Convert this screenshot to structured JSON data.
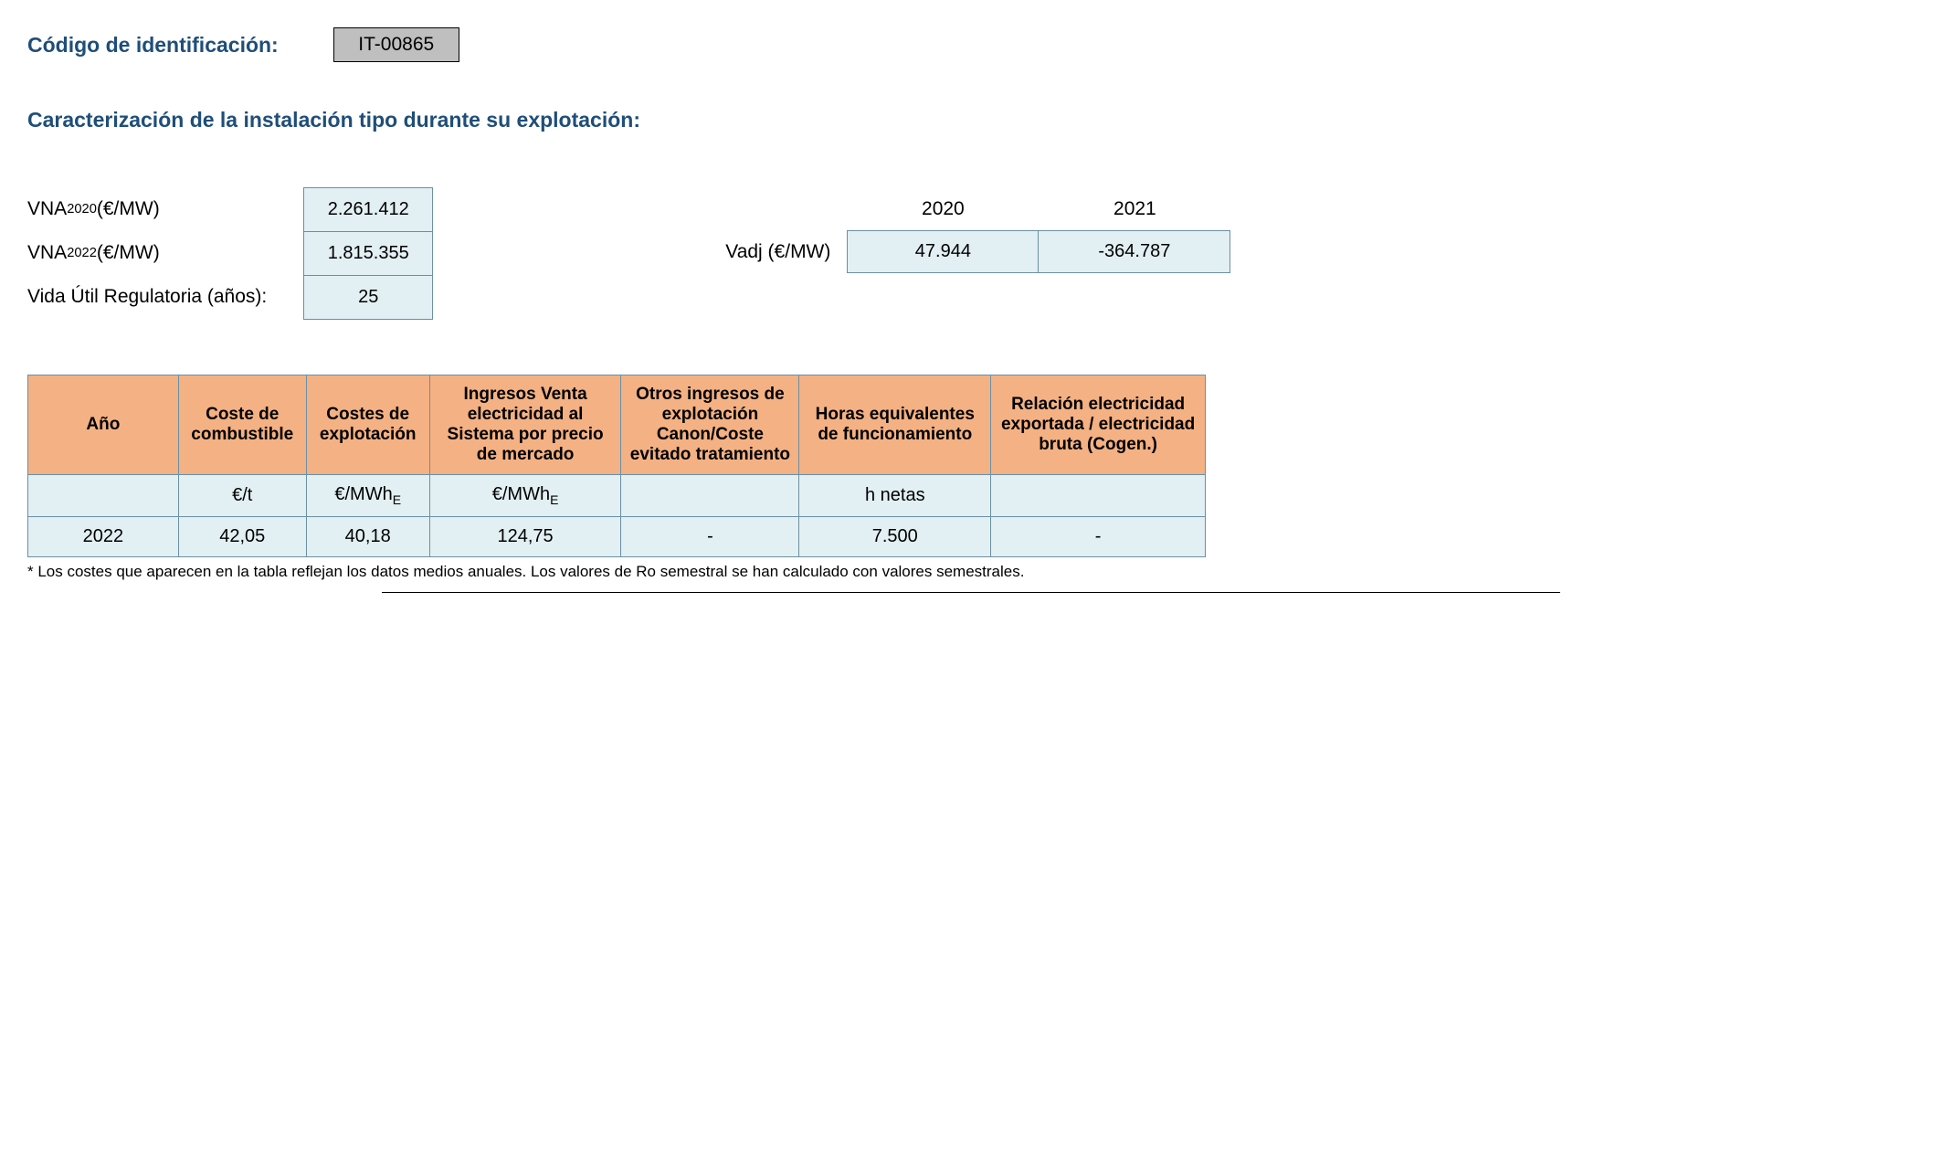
{
  "header": {
    "codigo_label": "Código de identificación:",
    "codigo_value": "IT-00865",
    "caracterizacion": "Caracterización de la instalación tipo durante su explotación:"
  },
  "params": {
    "vna2020_label_pre": "VNA",
    "vna2020_label_sub": "2020",
    "vna2020_label_suf": " (€/MW)",
    "vna2022_label_pre": "VNA",
    "vna2022_label_sub": "2022",
    "vna2022_label_suf": " (€/MW)",
    "vida_label": "Vida Útil Regulatoria (años):",
    "vna2020_value": "2.261.412",
    "vna2022_value": "1.815.355",
    "vida_value": "25"
  },
  "vadj": {
    "label": "Vadj (€/MW)",
    "year1": "2020",
    "year2": "2021",
    "val1": "47.944",
    "val2": "-364.787"
  },
  "table": {
    "headers": {
      "ano": "Año",
      "coste_comb": "Coste de combustible",
      "costes_expl": "Costes de explotación",
      "ingresos": "Ingresos Venta electricidad al Sistema por precio de mercado",
      "otros": "Otros ingresos de explotación Canon/Coste evitado tratamiento",
      "horas": "Horas equivalentes de funcionamiento",
      "relacion": "Relación electricidad exportada / electricidad bruta (Cogen.)"
    },
    "units": {
      "ano": "",
      "coste_comb": "€/t",
      "costes_expl_pre": "€/MWh",
      "costes_expl_sub": "E",
      "ingresos_pre": "€/MWh",
      "ingresos_sub": "E",
      "otros": "",
      "horas": "h netas",
      "relacion": ""
    },
    "row": {
      "ano": "2022",
      "coste_comb": "42,05",
      "costes_expl": "40,18",
      "ingresos": "124,75",
      "otros": "-",
      "horas": "7.500",
      "relacion": "-"
    },
    "widths": {
      "ano": 165,
      "coste_comb": 140,
      "costes_expl": 135,
      "ingresos": 210,
      "otros": 195,
      "horas": 210,
      "relacion": 235
    }
  },
  "footnote": "* Los costes que aparecen en la tabla reflejan los datos medios anuales. Los valores de Ro semestral se han calculado con valores semestrales."
}
